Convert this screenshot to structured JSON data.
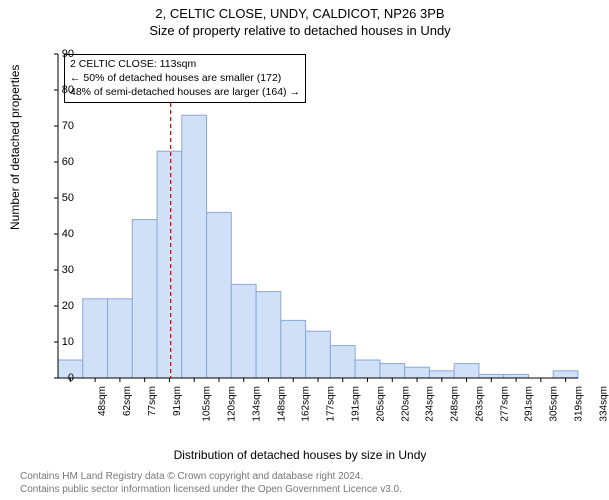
{
  "title_main": "2, CELTIC CLOSE, UNDY, CALDICOT, NP26 3PB",
  "title_sub": "Size of property relative to detached houses in Undy",
  "ylabel": "Number of detached properties",
  "xlabel": "Distribution of detached houses by size in Undy",
  "footer_line1": "Contains HM Land Registry data © Crown copyright and database right 2024.",
  "footer_line2": "Contains public sector information licensed under the Open Government Licence v3.0.",
  "chart": {
    "type": "histogram",
    "ylim": [
      0,
      90
    ],
    "ytick_step": 10,
    "x_categories": [
      "48sqm",
      "62sqm",
      "77sqm",
      "91sqm",
      "105sqm",
      "120sqm",
      "134sqm",
      "148sqm",
      "162sqm",
      "177sqm",
      "191sqm",
      "205sqm",
      "220sqm",
      "234sqm",
      "248sqm",
      "263sqm",
      "277sqm",
      "291sqm",
      "305sqm",
      "319sqm",
      "334sqm"
    ],
    "values": [
      5,
      22,
      22,
      44,
      63,
      73,
      46,
      26,
      24,
      16,
      13,
      9,
      5,
      4,
      3,
      2,
      4,
      1,
      1,
      0,
      2
    ],
    "bar_fill": "#cfe0f7",
    "bar_stroke": "#8aa8d8",
    "axis_color": "#000000",
    "tick_color": "#000000",
    "background": "#ffffff",
    "marker_line_x_index": 4.55,
    "marker_line_color": "#cc0000",
    "marker_line_dash": "4 3",
    "annotation": {
      "line1": "2 CELTIC CLOSE: 113sqm",
      "line2": "← 50% of detached houses are smaller (172)",
      "line3": "48% of semi-detached houses are larger (164) →"
    },
    "title_fontsize": 13,
    "label_fontsize": 12,
    "tick_fontsize": 11,
    "bar_width_ratio": 1.0
  }
}
